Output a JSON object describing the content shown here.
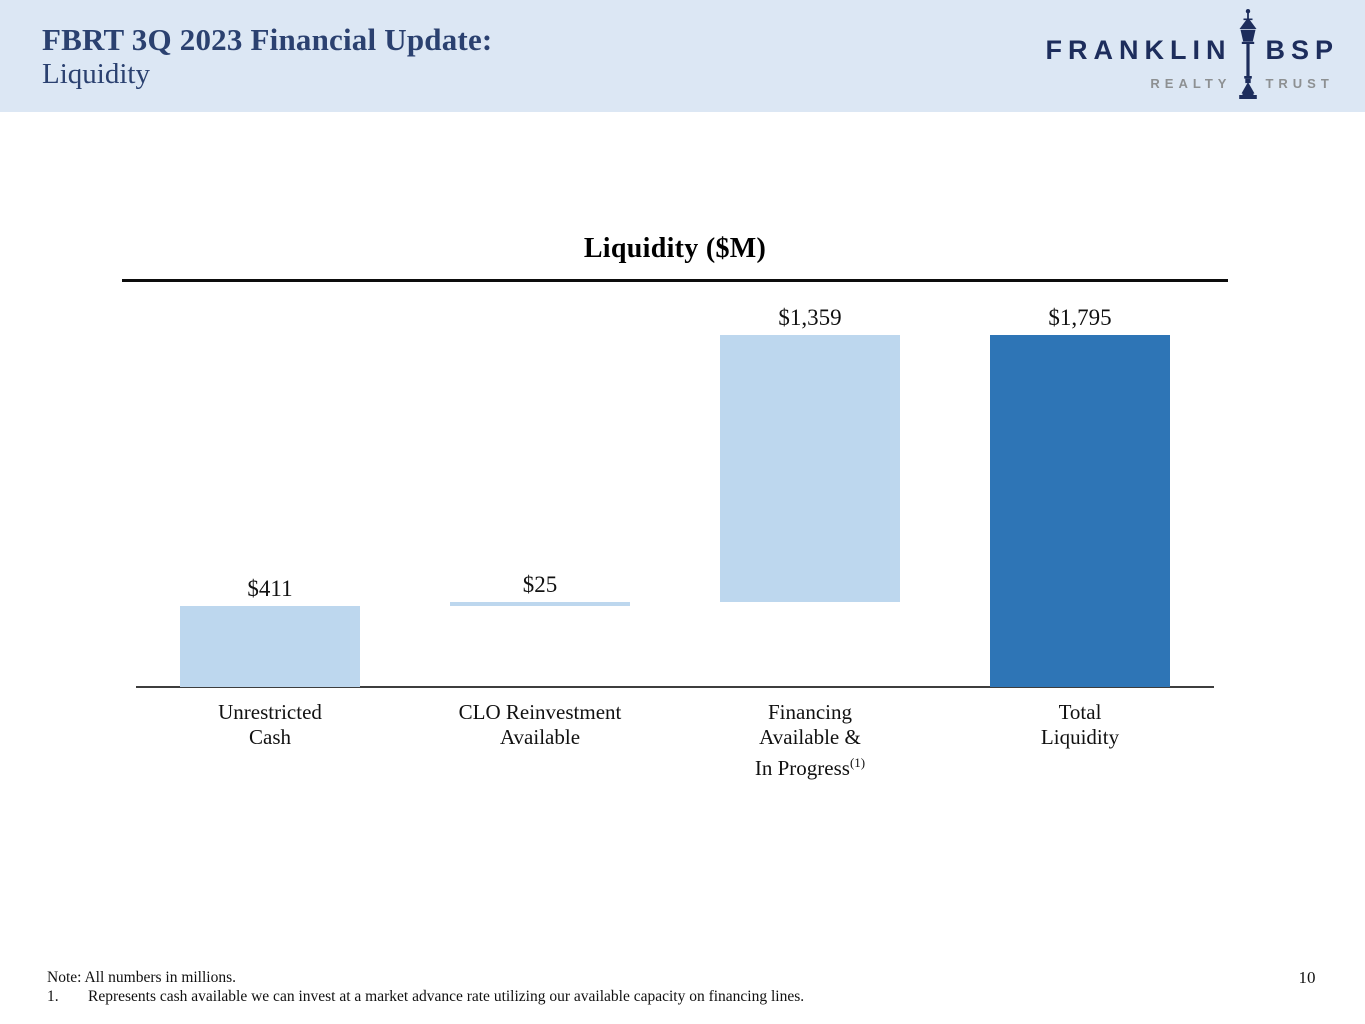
{
  "header": {
    "title": "FBRT 3Q 2023 Financial Update:",
    "subtitle": "Liquidity"
  },
  "logo": {
    "word_top_left": "FRANKLIN",
    "word_top_right": "BSP",
    "word_bottom_left": "REALTY",
    "word_bottom_right": "TRUST",
    "icon": "lamppost-icon",
    "navy": "#1d2d5c",
    "gray": "#8d9092"
  },
  "chart_data": {
    "type": "bar",
    "subtype": "waterfall",
    "title": "Liquidity ($M)",
    "xlabel": "",
    "ylabel": "",
    "ylim": [
      0,
      1795
    ],
    "gridlines": false,
    "legend": false,
    "value_prefix": "$",
    "colors": {
      "light": "#bdd7ee",
      "dark": "#2e75b6"
    },
    "categories": [
      "Unrestricted Cash",
      "CLO Reinvestment Available",
      "Financing Available & In Progress",
      "Total Liquidity"
    ],
    "bars": [
      {
        "label_lines": [
          "Unrestricted",
          "Cash"
        ],
        "superscript": "",
        "base": 0,
        "value": 411,
        "value_label": "$411",
        "color": "light"
      },
      {
        "label_lines": [
          "CLO Reinvestment",
          "Available"
        ],
        "superscript": "",
        "base": 411,
        "value": 25,
        "value_label": "$25",
        "color": "light"
      },
      {
        "label_lines": [
          "Financing",
          "Available &",
          "In Progress"
        ],
        "superscript": "(1)",
        "base": 436,
        "value": 1359,
        "value_label": "$1,359",
        "color": "light"
      },
      {
        "label_lines": [
          "Total",
          "Liquidity"
        ],
        "superscript": "",
        "base": 0,
        "value": 1795,
        "value_label": "$1,795",
        "color": "dark"
      }
    ]
  },
  "footer": {
    "note": "Note: All numbers in millions.",
    "footnotes": [
      {
        "num": "1.",
        "text": "Represents cash available we can invest at a market advance rate utilizing our available capacity on financing lines."
      }
    ],
    "page_number": "10"
  }
}
